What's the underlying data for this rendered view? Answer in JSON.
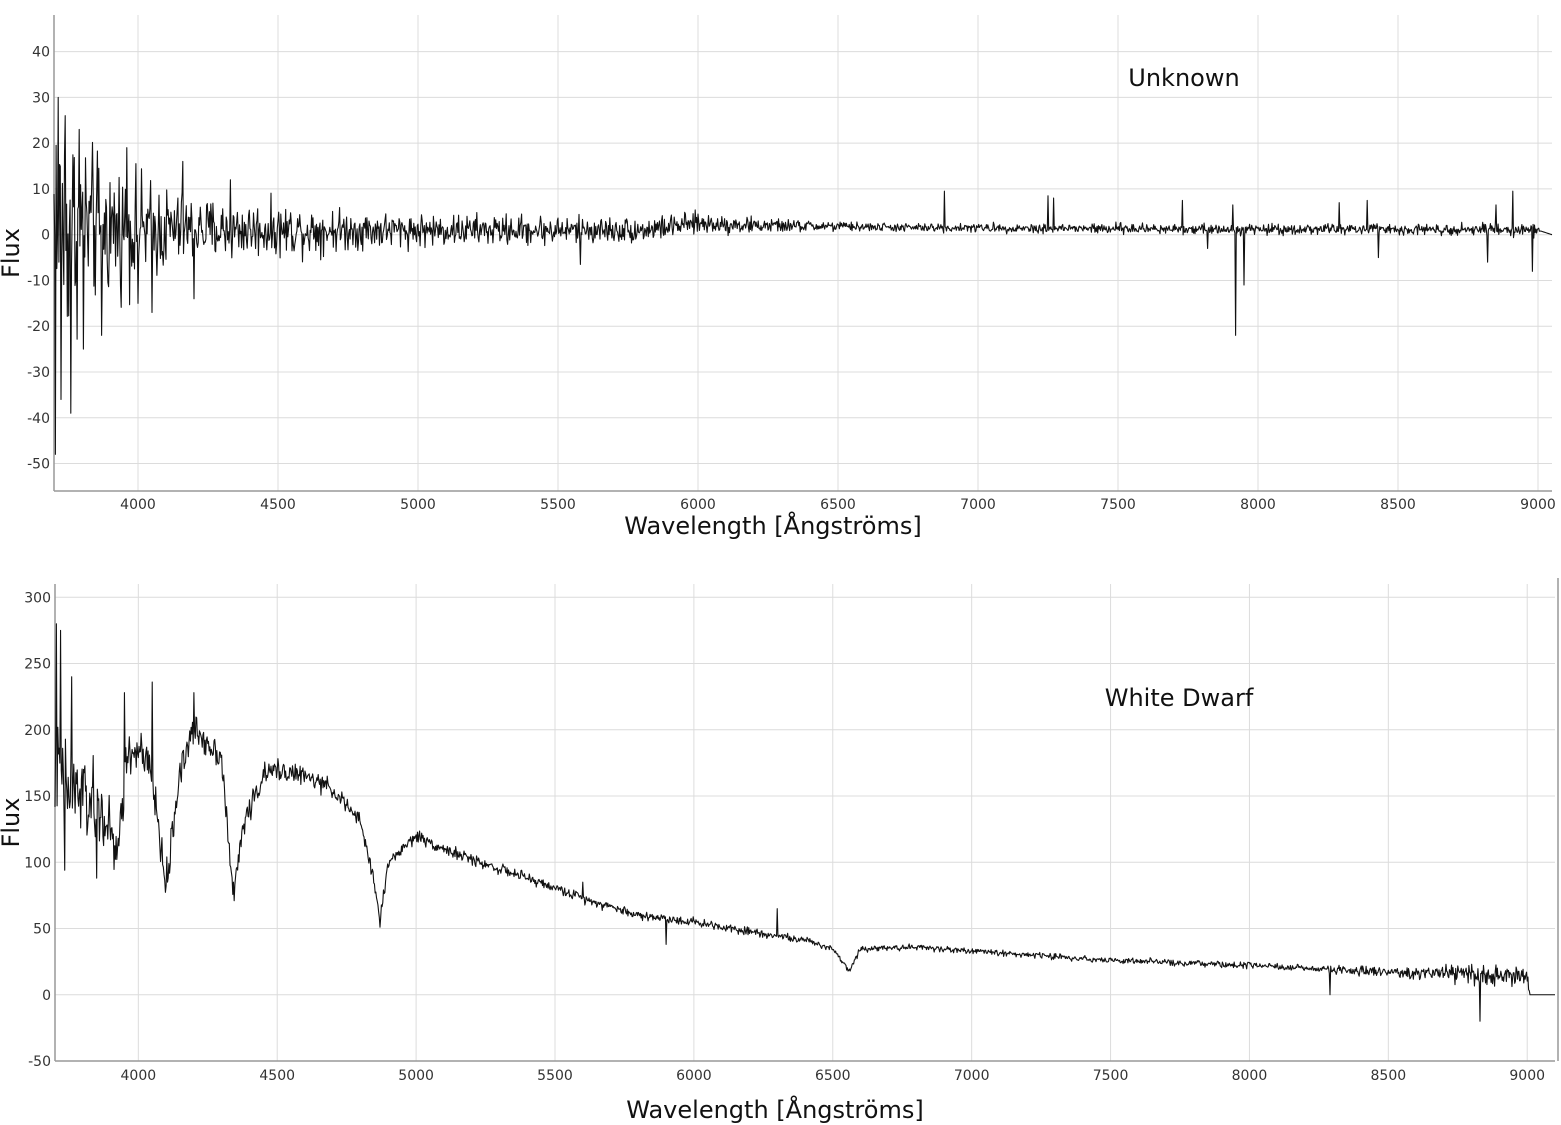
{
  "chart_data": [
    {
      "type": "line",
      "annotation": "Unknown",
      "xlabel": "Wavelength [Ångströms]",
      "ylabel": "Flux",
      "xlim": [
        3700,
        9050
      ],
      "ylim": [
        -56,
        48
      ],
      "x_ticks": [
        4000,
        4500,
        5000,
        5500,
        6000,
        6500,
        7000,
        7500,
        8000,
        8500,
        9000
      ],
      "y_ticks": [
        -50,
        -40,
        -30,
        -20,
        -10,
        0,
        10,
        20,
        30,
        40
      ],
      "grid": true,
      "line_color": "#111111",
      "series": [
        {
          "x": [
            3700,
            3750,
            3800,
            3850,
            3900,
            3950,
            4000,
            4100,
            4200,
            4300,
            4400,
            4500,
            4600,
            4800,
            5000,
            5200,
            5400,
            5600,
            5800,
            6000,
            6200,
            6500,
            6800,
            7000,
            7200,
            7500,
            7700,
            8000,
            8300,
            8500,
            8800,
            9000,
            9050
          ],
          "y": [
            2,
            1.5,
            1.5,
            1.4,
            1.3,
            1.2,
            1.2,
            1.1,
            1.1,
            1.0,
            1.0,
            1.0,
            1.0,
            1.0,
            1.0,
            1.0,
            1.0,
            1.0,
            1.0,
            2.5,
            2.0,
            1.8,
            1.5,
            1.5,
            1.4,
            1.3,
            1.3,
            1.2,
            1.2,
            1.2,
            1.2,
            1.0,
            0
          ],
          "noise": [
            [
              3700,
              35
            ],
            [
              3750,
              22
            ],
            [
              3800,
              16
            ],
            [
              3900,
              12
            ],
            [
              4000,
              10
            ],
            [
              4100,
              8
            ],
            [
              4200,
              6
            ],
            [
              4400,
              5
            ],
            [
              4600,
              4.5
            ],
            [
              4800,
              3.5
            ],
            [
              5000,
              3
            ],
            [
              5300,
              2.8
            ],
            [
              5600,
              2.5
            ],
            [
              6000,
              2
            ],
            [
              6300,
              1.2
            ],
            [
              6600,
              0.8
            ],
            [
              7000,
              0.8
            ],
            [
              7500,
              1
            ],
            [
              8000,
              1
            ],
            [
              8500,
              1
            ],
            [
              9000,
              1.2
            ],
            [
              9010,
              0
            ]
          ],
          "spikes": [
            [
              3705,
              -48
            ],
            [
              3715,
              30
            ],
            [
              3725,
              -36
            ],
            [
              3740,
              26
            ],
            [
              3760,
              -39
            ],
            [
              3790,
              23
            ],
            [
              3805,
              -25
            ],
            [
              3870,
              -22
            ],
            [
              3960,
              19
            ],
            [
              4000,
              -15
            ],
            [
              4050,
              -17
            ],
            [
              4160,
              16
            ],
            [
              4200,
              -14
            ],
            [
              4330,
              12
            ],
            [
              5580,
              8
            ],
            [
              5580,
              -6.5
            ],
            [
              6880,
              9.5
            ],
            [
              7250,
              8.5
            ],
            [
              7270,
              8
            ],
            [
              7730,
              7.5
            ],
            [
              7820,
              -3
            ],
            [
              7910,
              6.5
            ],
            [
              7920,
              -22
            ],
            [
              7950,
              -11
            ],
            [
              8290,
              7
            ],
            [
              8390,
              7.5
            ],
            [
              8430,
              -5
            ],
            [
              8820,
              -6
            ],
            [
              8850,
              6.5
            ],
            [
              8910,
              9.5
            ],
            [
              8980,
              -8
            ]
          ]
        }
      ]
    },
    {
      "type": "line",
      "annotation": "White Dwarf",
      "xlabel": "Wavelength [Ångströms]",
      "ylabel": "Flux",
      "xlim": [
        3700,
        9100
      ],
      "ylim": [
        -50,
        310
      ],
      "x_ticks": [
        4000,
        4500,
        5000,
        5500,
        6000,
        6500,
        7000,
        7500,
        8000,
        8500,
        9000
      ],
      "y_ticks": [
        -50,
        0,
        50,
        100,
        150,
        200,
        250,
        300
      ],
      "grid": true,
      "line_color": "#111111",
      "series": [
        {
          "x": [
            3700,
            3750,
            3800,
            3850,
            3890,
            3920,
            3960,
            4000,
            4050,
            4100,
            4150,
            4200,
            4250,
            4300,
            4340,
            4380,
            4450,
            4500,
            4600,
            4700,
            4800,
            4850,
            4870,
            4900,
            5000,
            5100,
            5200,
            5400,
            5600,
            5800,
            6000,
            6200,
            6400,
            6500,
            6560,
            6600,
            6800,
            7000,
            7500,
            8000,
            8500,
            8800,
            9000,
            9010,
            9100
          ],
          "y": [
            165,
            155,
            150,
            140,
            130,
            100,
            180,
            185,
            165,
            80,
            170,
            200,
            190,
            180,
            75,
            130,
            165,
            170,
            165,
            155,
            130,
            85,
            55,
            100,
            120,
            110,
            102,
            88,
            73,
            60,
            55,
            48,
            41,
            35,
            18,
            35,
            36,
            33,
            26,
            22,
            17,
            15,
            14,
            0,
            0
          ],
          "noise": [
            [
              3700,
              35
            ],
            [
              3800,
              30
            ],
            [
              3900,
              20
            ],
            [
              4000,
              15
            ],
            [
              4200,
              10
            ],
            [
              4400,
              8
            ],
            [
              4600,
              6
            ],
            [
              4800,
              5
            ],
            [
              5000,
              4
            ],
            [
              5500,
              3
            ],
            [
              6000,
              3
            ],
            [
              6500,
              2
            ],
            [
              7000,
              2
            ],
            [
              7500,
              2
            ],
            [
              8000,
              2
            ],
            [
              8250,
              2
            ],
            [
              8300,
              4
            ],
            [
              8500,
              3
            ],
            [
              8700,
              5
            ],
            [
              8800,
              8
            ],
            [
              9000,
              6
            ],
            [
              9010,
              0
            ]
          ],
          "spikes": [
            [
              3705,
              280
            ],
            [
              3720,
              275
            ],
            [
              3735,
              94
            ],
            [
              3760,
              240
            ],
            [
              3850,
              88
            ],
            [
              3950,
              228
            ],
            [
              4050,
              236
            ],
            [
              4100,
              82
            ],
            [
              4200,
              228
            ],
            [
              4345,
              71
            ],
            [
              4870,
              51
            ],
            [
              5600,
              85
            ],
            [
              5900,
              38
            ],
            [
              6300,
              65
            ],
            [
              8290,
              0
            ],
            [
              8830,
              -20
            ]
          ]
        }
      ]
    }
  ]
}
